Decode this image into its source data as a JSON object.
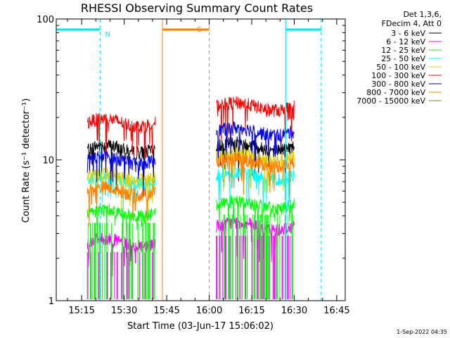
{
  "chart_data": {
    "type": "line",
    "title": "RHESSI Observing Summary Count Rates",
    "xlabel": "Start Time (03-Jun-17 15:06:02)",
    "ylabel": "Count Rate (s⁻¹ detector⁻¹)",
    "y_scale": "log",
    "ylim": [
      1,
      100
    ],
    "xlim": [
      "15:06:02",
      "16:48:00"
    ],
    "x_ticks": [
      "15:15",
      "15:30",
      "15:45",
      "16:00",
      "16:15",
      "16:30",
      "16:45"
    ],
    "y_ticks": [
      "1",
      "10",
      "100"
    ],
    "legend_header": [
      "Det 1,3,6,",
      "FDecim 4, Att 0"
    ],
    "footer": "1-Sep-2022 04:35",
    "markers": [
      {
        "label": "N",
        "color": "#00e5ee",
        "solid_at": [
          "15:06:02",
          "16:27:00"
        ],
        "dashed_at": [
          "15:21:30",
          "16:39:30"
        ],
        "bar_from": [
          "15:06:02",
          "16:27:00"
        ],
        "bar_to": [
          "15:21:30",
          "16:39:30"
        ]
      },
      {
        "label": "S",
        "color": "#ff8000",
        "solid_at": [
          "15:43:30"
        ],
        "dashed_at": [
          "16:00:00"
        ],
        "bar_from": [
          "15:43:30"
        ],
        "bar_to": [
          "16:00:00"
        ]
      }
    ],
    "segments": [
      {
        "start": "15:17:00",
        "end": "15:41:00"
      },
      {
        "start": "16:02:30",
        "end": "16:30:00"
      }
    ],
    "series": [
      {
        "name": "3 - 6 keV",
        "color": "#000000",
        "values": [
          12,
          12.5
        ]
      },
      {
        "name": "6 - 12 keV",
        "color": "#ff00ff",
        "values": [
          2.6,
          3.4
        ]
      },
      {
        "name": "12 - 25 keV",
        "color": "#00ff00",
        "values": [
          4.2,
          4.8
        ]
      },
      {
        "name": "25 - 50 keV",
        "color": "#00ffff",
        "values": [
          7.2,
          7.8
        ]
      },
      {
        "name": "50 - 100 keV",
        "color": "#e0d000",
        "values": [
          7.6,
          10.5
        ]
      },
      {
        "name": "100 - 300 keV",
        "color": "#ff0000",
        "values": [
          18.5,
          24
        ]
      },
      {
        "name": "300 - 800 keV",
        "color": "#0000ff",
        "values": [
          10,
          16
        ]
      },
      {
        "name": "800 - 7000 keV",
        "color": "#ff8000",
        "values": [
          6,
          9.6
        ]
      },
      {
        "name": "7000 - 15000 keV",
        "color": "#808000",
        "values": [
          null,
          null
        ]
      }
    ]
  }
}
